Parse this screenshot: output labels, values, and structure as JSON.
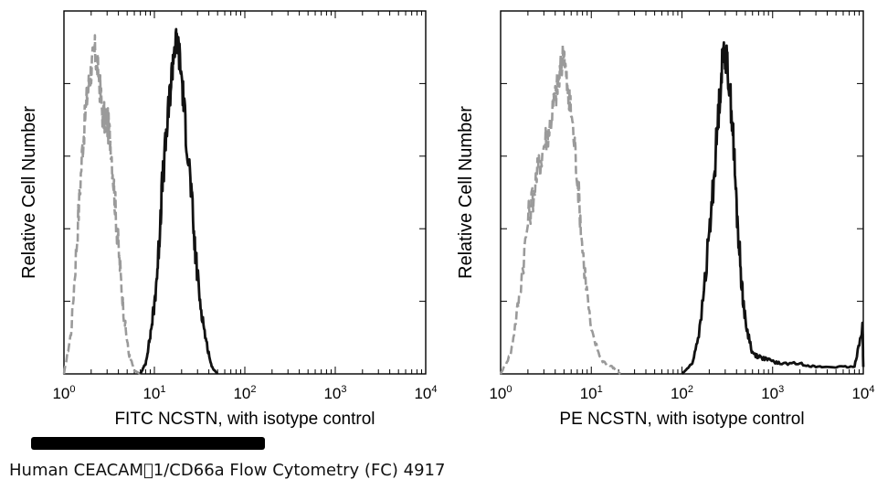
{
  "chart_data": [
    {
      "type": "line",
      "ylabel": "Relative Cell Number",
      "xlabel": "FITC NCSTN, with isotype control",
      "xscale": "log",
      "xlim": [
        1,
        10000
      ],
      "xticks": [
        {
          "value": 1,
          "base": "10",
          "exp": "0"
        },
        {
          "value": 10,
          "base": "10",
          "exp": "1"
        },
        {
          "value": 100,
          "base": "10",
          "exp": "2"
        },
        {
          "value": 1000,
          "base": "10",
          "exp": "3"
        },
        {
          "value": 10000,
          "base": "10",
          "exp": "4"
        }
      ],
      "ylim": [
        0,
        100
      ],
      "grid": false,
      "series": [
        {
          "role": "isotype",
          "color": "#9a9a9a",
          "dashed": true,
          "x": [
            1.0,
            1.2,
            1.4,
            1.6,
            1.8,
            2.0,
            2.2,
            2.4,
            2.7,
            3.0,
            3.3,
            3.7,
            4.1,
            4.6,
            5.2,
            6.0,
            7.0
          ],
          "y": [
            0,
            12,
            40,
            65,
            80,
            88,
            93,
            87,
            74,
            73,
            67,
            48,
            33,
            17,
            6,
            1,
            0
          ]
        },
        {
          "role": "antibody",
          "color": "#111111",
          "x": [
            7,
            8,
            9,
            10,
            11,
            12,
            13.5,
            15,
            16.5,
            18,
            20,
            22,
            25,
            28,
            32,
            37,
            43,
            50
          ],
          "y": [
            0,
            3,
            11,
            20,
            33,
            52,
            68,
            82,
            94,
            96,
            86,
            72,
            56,
            36,
            21,
            10,
            2,
            0
          ]
        }
      ]
    },
    {
      "type": "line",
      "ylabel": "Relative Cell Number",
      "xlabel": "PE NCSTN, with isotype control",
      "xscale": "log",
      "xlim": [
        1,
        10000
      ],
      "xticks": [
        {
          "value": 1,
          "base": "10",
          "exp": "0"
        },
        {
          "value": 10,
          "base": "10",
          "exp": "1"
        },
        {
          "value": 100,
          "base": "10",
          "exp": "2"
        },
        {
          "value": 1000,
          "base": "10",
          "exp": "3"
        },
        {
          "value": 10000,
          "base": "10",
          "exp": "4"
        }
      ],
      "ylim": [
        0,
        100
      ],
      "grid": false,
      "series": [
        {
          "role": "isotype",
          "color": "#9a9a9a",
          "dashed": true,
          "x": [
            1.0,
            1.3,
            1.6,
            2.0,
            2.5,
            3.0,
            3.5,
            4.0,
            4.5,
            5.0,
            5.5,
            6.0,
            7.0,
            8.0,
            10,
            13,
            17,
            21
          ],
          "y": [
            0,
            6,
            22,
            44,
            57,
            66,
            72,
            80,
            86,
            94,
            80,
            76,
            58,
            36,
            12,
            4,
            2,
            0
          ]
        },
        {
          "role": "antibody",
          "color": "#111111",
          "x": [
            100,
            130,
            160,
            200,
            230,
            260,
            290,
            320,
            360,
            400,
            450,
            500,
            600,
            700,
            900,
            1200,
            2000,
            3000,
            5000,
            8000,
            9800,
            10000
          ],
          "y": [
            0,
            3,
            14,
            40,
            60,
            80,
            95,
            88,
            73,
            48,
            28,
            15,
            6,
            5,
            4,
            3,
            3,
            2,
            2,
            2,
            14,
            2
          ]
        }
      ]
    }
  ],
  "caption": "Human CEACAM\u00001/CD66a Flow Cytometry (FC) 4917"
}
